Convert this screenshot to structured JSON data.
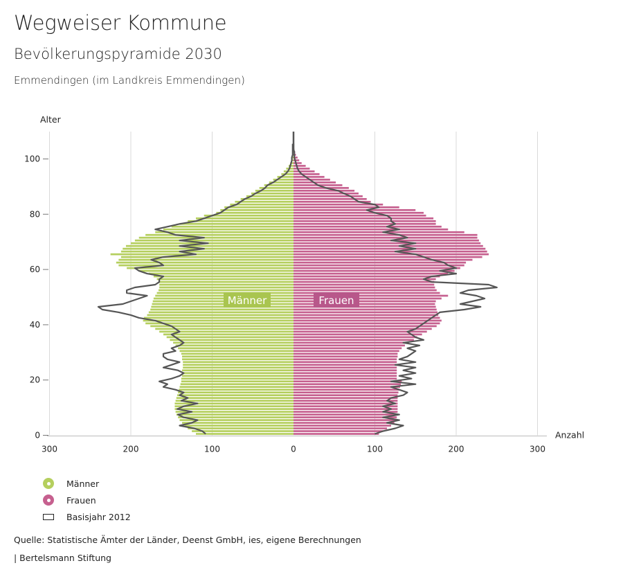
{
  "header": {
    "title": "Wegweiser Kommune",
    "subtitle": "Bevölkerungspyramide 2030",
    "region": "Emmendingen (im Landkreis Emmendingen)"
  },
  "legend": {
    "men": "Männer",
    "women": "Frauen",
    "base": "Basisjahr 2012"
  },
  "footer": {
    "source": "Quelle: Statistische Ämter der Länder, Deenst GmbH, ies, eigene Berechnungen",
    "brand": "| Bertelsmann Stiftung"
  },
  "colors": {
    "men": "#b5cf5e",
    "women": "#c6608f",
    "base_line": "#555555",
    "grid": "#d9d9d9",
    "label_men_bg": "#a9c550",
    "label_women_bg": "#b8578a"
  },
  "chart_data": {
    "type": "bar",
    "orientation": "horizontal-population-pyramid",
    "ylabel": "Alter",
    "xlabel": "Anzahl",
    "xlim": [
      -300,
      300
    ],
    "ylim": [
      0,
      110
    ],
    "x_ticks": [
      -300,
      -200,
      -100,
      0,
      100,
      200,
      300
    ],
    "x_tick_labels": [
      "300",
      "200",
      "100",
      "0",
      "100",
      "200",
      "300"
    ],
    "y_ticks": [
      0,
      20,
      40,
      60,
      80,
      100
    ],
    "y_tick_labels": [
      "0",
      "20",
      "40",
      "60",
      "80",
      "100"
    ],
    "grid": true,
    "bar_labels": {
      "men": "Männer",
      "women": "Frauen"
    },
    "ages": [
      0,
      1,
      2,
      3,
      4,
      5,
      6,
      7,
      8,
      9,
      10,
      11,
      12,
      13,
      14,
      15,
      16,
      17,
      18,
      19,
      20,
      21,
      22,
      23,
      24,
      25,
      26,
      27,
      28,
      29,
      30,
      31,
      32,
      33,
      34,
      35,
      36,
      37,
      38,
      39,
      40,
      41,
      42,
      43,
      44,
      45,
      46,
      47,
      48,
      49,
      50,
      51,
      52,
      53,
      54,
      55,
      56,
      57,
      58,
      59,
      60,
      61,
      62,
      63,
      64,
      65,
      66,
      67,
      68,
      69,
      70,
      71,
      72,
      73,
      74,
      75,
      76,
      77,
      78,
      79,
      80,
      81,
      82,
      83,
      84,
      85,
      86,
      87,
      88,
      89,
      90,
      91,
      92,
      93,
      94,
      95,
      96,
      97,
      98,
      99,
      100,
      101,
      102,
      103,
      104,
      105
    ],
    "series": [
      {
        "name": "Männer",
        "values": [
          120,
          125,
          130,
          134,
          137,
          140,
          142,
          144,
          145,
          146,
          146,
          146,
          145,
          144,
          143,
          142,
          141,
          140,
          139,
          138,
          138,
          137,
          137,
          137,
          136,
          136,
          136,
          137,
          137,
          138,
          140,
          142,
          145,
          148,
          152,
          156,
          160,
          165,
          170,
          176,
          182,
          185,
          184,
          180,
          178,
          176,
          175,
          174,
          173,
          172,
          170,
          168,
          166,
          165,
          165,
          166,
          168,
          172,
          178,
          190,
          205,
          215,
          218,
          215,
          212,
          225,
          212,
          210,
          206,
          200,
          195,
          190,
          182,
          170,
          160,
          150,
          140,
          130,
          120,
          110,
          95,
          90,
          85,
          78,
          72,
          65,
          58,
          52,
          47,
          42,
          36,
          30,
          25,
          20,
          15,
          12,
          9,
          6,
          4,
          3,
          2,
          1,
          1,
          0,
          0,
          0
        ]
      },
      {
        "name": "Frauen",
        "values": [
          105,
          110,
          115,
          120,
          124,
          126,
          127,
          128,
          128,
          128,
          128,
          128,
          128,
          128,
          128,
          129,
          130,
          131,
          132,
          133,
          127,
          127,
          127,
          127,
          127,
          127,
          127,
          127,
          128,
          128,
          130,
          133,
          137,
          142,
          148,
          152,
          158,
          164,
          170,
          176,
          180,
          182,
          180,
          178,
          177,
          176,
          175,
          174,
          175,
          182,
          190,
          180,
          176,
          174,
          173,
          173,
          175,
          180,
          190,
          198,
          205,
          210,
          212,
          220,
          232,
          240,
          238,
          236,
          233,
          230,
          228,
          226,
          226,
          210,
          190,
          182,
          175,
          175,
          172,
          163,
          160,
          150,
          130,
          110,
          95,
          90,
          85,
          80,
          75,
          68,
          60,
          52,
          45,
          38,
          32,
          26,
          20,
          15,
          10,
          7,
          5,
          3,
          2,
          1,
          0,
          0
        ]
      },
      {
        "name": "Basisjahr 2012",
        "left": [
          108,
          112,
          122,
          140,
          125,
          118,
          135,
          142,
          125,
          143,
          135,
          118,
          138,
          130,
          140,
          135,
          145,
          160,
          155,
          165,
          150,
          140,
          135,
          142,
          160,
          150,
          140,
          155,
          160,
          160,
          145,
          150,
          140,
          135,
          140,
          145,
          150,
          140,
          145,
          150,
          160,
          170,
          190,
          200,
          215,
          235,
          240,
          210,
          200,
          190,
          180,
          205,
          205,
          195,
          170,
          165,
          165,
          160,
          180,
          190,
          195,
          160,
          165,
          175,
          160,
          120,
          140,
          110,
          140,
          105,
          140,
          110,
          145,
          155,
          170,
          155,
          140,
          120,
          110,
          100,
          90,
          85,
          80,
          70,
          65,
          60,
          52,
          47,
          40,
          35,
          32,
          25,
          20,
          15,
          10,
          7,
          5,
          4,
          3,
          2,
          2,
          1,
          1,
          1,
          1,
          1
        ],
        "right": [
          100,
          110,
          125,
          135,
          115,
          130,
          110,
          130,
          110,
          120,
          110,
          125,
          115,
          120,
          135,
          140,
          130,
          120,
          150,
          120,
          145,
          130,
          150,
          135,
          150,
          125,
          150,
          130,
          140,
          145,
          150,
          140,
          155,
          135,
          160,
          150,
          145,
          140,
          150,
          155,
          160,
          165,
          170,
          175,
          180,
          210,
          230,
          205,
          220,
          235,
          225,
          205,
          215,
          250,
          240,
          170,
          160,
          170,
          200,
          180,
          200,
          190,
          185,
          170,
          160,
          150,
          125,
          150,
          130,
          150,
          120,
          140,
          130,
          110,
          130,
          115,
          125,
          120,
          120,
          115,
          100,
          90,
          105,
          100,
          80,
          75,
          70,
          62,
          55,
          40,
          30,
          25,
          20,
          15,
          10,
          7,
          5,
          4,
          3,
          2,
          1,
          1,
          1,
          0,
          0,
          0
        ]
      }
    ]
  }
}
